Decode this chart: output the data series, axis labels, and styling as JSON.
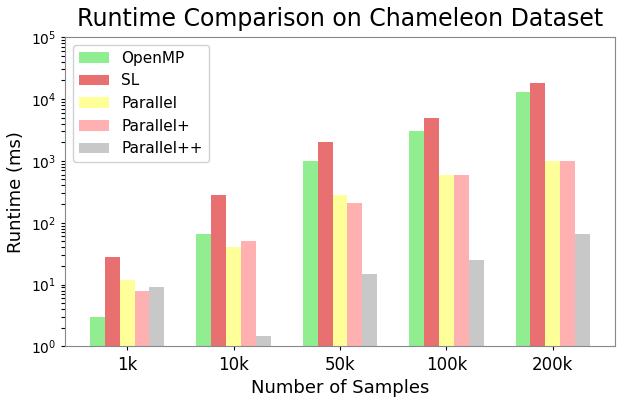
{
  "title": "Runtime Comparison on Chameleon Dataset",
  "xlabel": "Number of Samples",
  "ylabel": "Runtime (ms)",
  "categories": [
    "1k",
    "10k",
    "50k",
    "100k",
    "200k"
  ],
  "series": {
    "OpenMP": [
      3.0,
      65,
      1000,
      3000,
      13000
    ],
    "SL": [
      28,
      280,
      2000,
      5000,
      18000
    ],
    "Parallel": [
      12,
      40,
      280,
      600,
      1000
    ],
    "Parallel+": [
      8,
      50,
      210,
      580,
      1000
    ],
    "Parallel++": [
      9,
      1.5,
      15,
      25,
      65
    ]
  },
  "colors": {
    "OpenMP": "#90EE90",
    "SL": "#E87070",
    "Parallel": "#FFFF99",
    "Parallel+": "#FFB0B0",
    "Parallel++": "#C8C8C8"
  },
  "ylim": [
    1,
    100000
  ],
  "bar_width": 0.14,
  "title_fontsize": 17,
  "label_fontsize": 13,
  "tick_fontsize": 12,
  "legend_fontsize": 11
}
